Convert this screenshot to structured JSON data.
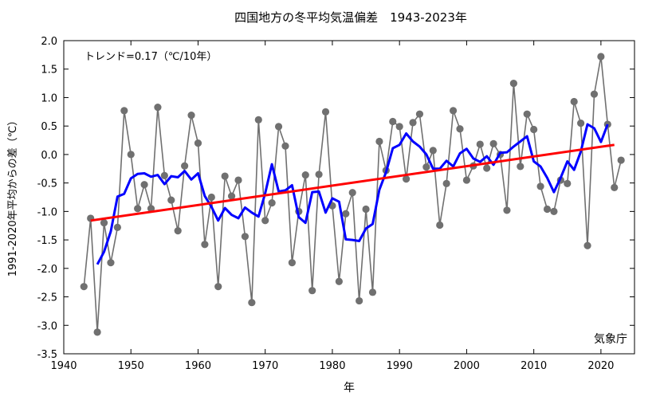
{
  "chart_data": {
    "type": "line",
    "title": "四国地方の冬平均気温偏差　1943-2023年",
    "xlabel": "年",
    "ylabel": "1991-2020年平均からの差（℃）",
    "trend_label": "トレンド=0.17（℃/10年）",
    "credit": "気象庁",
    "xlim": [
      1940,
      2025
    ],
    "ylim": [
      -3.5,
      2.0
    ],
    "x_ticks": [
      1940,
      1950,
      1960,
      1970,
      1980,
      1990,
      2000,
      2010,
      2020
    ],
    "x_tick_labels": [
      "1940",
      "1950",
      "1960",
      "1970",
      "1980",
      "1990",
      "2000",
      "2010",
      "2020"
    ],
    "y_ticks": [
      -3.5,
      -3.0,
      -2.5,
      -2.0,
      -1.5,
      -1.0,
      -0.5,
      0.0,
      0.5,
      1.0,
      1.5,
      2.0
    ],
    "y_tick_labels": [
      "-3.5",
      "-3.0",
      "-2.5",
      "-2.0",
      "-1.5",
      "-1.0",
      "-0.5",
      "0.0",
      "0.5",
      "1.0",
      "1.5",
      "2.0"
    ],
    "grid": false,
    "colors": {
      "annual": "#707070",
      "moving_average": "#0000ff",
      "trend": "#ff0000"
    },
    "series": [
      {
        "x": [
          1943,
          1944,
          1945,
          1946,
          1947,
          1948,
          1949,
          1950,
          1951,
          1952,
          1953,
          1954,
          1955,
          1956,
          1957,
          1958,
          1959,
          1960,
          1961,
          1962,
          1963,
          1964,
          1965,
          1966,
          1967,
          1968,
          1969,
          1970,
          1971,
          1972,
          1973,
          1974,
          1975,
          1976,
          1977,
          1978,
          1979,
          1980,
          1981,
          1982,
          1983,
          1984,
          1985,
          1986,
          1987,
          1988,
          1989,
          1990,
          1991,
          1992,
          1993,
          1994,
          1995,
          1996,
          1997,
          1998,
          1999,
          2000,
          2001,
          2002,
          2003,
          2004,
          2005,
          2006,
          2007,
          2008,
          2009,
          2010,
          2011,
          2012,
          2013,
          2014,
          2015,
          2016,
          2017,
          2018,
          2019,
          2020,
          2021,
          2022,
          2023
        ],
        "values": [
          -2.32,
          -1.12,
          -3.12,
          -1.2,
          -1.9,
          -1.28,
          0.77,
          0.0,
          -0.95,
          -0.53,
          -0.95,
          0.83,
          -0.37,
          -0.8,
          -1.34,
          -0.2,
          0.69,
          0.2,
          -1.58,
          -0.75,
          -2.32,
          -0.38,
          -0.73,
          -0.45,
          -1.44,
          -2.6,
          0.61,
          -1.16,
          -0.85,
          0.49,
          0.15,
          -1.9,
          -1.0,
          -0.36,
          -2.39,
          -0.35,
          0.75,
          -0.9,
          -2.23,
          -1.04,
          -0.67,
          -2.57,
          -0.96,
          -2.42,
          0.23,
          -0.28,
          0.58,
          0.49,
          -0.43,
          0.56,
          0.71,
          -0.22,
          0.07,
          -1.24,
          -0.51,
          0.77,
          0.45,
          -0.45,
          -0.2,
          0.18,
          -0.24,
          0.19,
          0.0,
          -0.98,
          1.25,
          -0.21,
          0.71,
          0.44,
          -0.56,
          -0.96,
          -1.0,
          -0.45,
          -0.51,
          0.93,
          0.55,
          -1.6,
          1.06,
          1.72,
          0.53,
          -0.58,
          -0.1
        ]
      },
      {
        "x": [
          1945,
          1946,
          1947,
          1948,
          1949,
          1950,
          1951,
          1952,
          1953,
          1954,
          1955,
          1956,
          1957,
          1958,
          1959,
          1960,
          1961,
          1962,
          1963,
          1964,
          1965,
          1966,
          1967,
          1968,
          1969,
          1970,
          1971,
          1972,
          1973,
          1974,
          1975,
          1976,
          1977,
          1978,
          1979,
          1980,
          1981,
          1982,
          1983,
          1984,
          1985,
          1986,
          1987,
          1988,
          1989,
          1990,
          1991,
          1992,
          1993,
          1994,
          1995,
          1996,
          1997,
          1998,
          1999,
          2000,
          2001,
          2002,
          2003,
          2004,
          2005,
          2006,
          2007,
          2008,
          2009,
          2010,
          2011,
          2012,
          2013,
          2014,
          2015,
          2016,
          2017,
          2018,
          2019,
          2020,
          2021
        ],
        "values": [
          -1.93,
          -1.71,
          -1.35,
          -0.74,
          -0.69,
          -0.42,
          -0.34,
          -0.33,
          -0.39,
          -0.36,
          -0.52,
          -0.38,
          -0.4,
          -0.29,
          -0.44,
          -0.33,
          -0.73,
          -0.92,
          -1.16,
          -0.94,
          -1.06,
          -1.12,
          -0.93,
          -1.02,
          -1.09,
          -0.68,
          -0.17,
          -0.65,
          -0.63,
          -0.54,
          -1.1,
          -1.2,
          -0.66,
          -0.65,
          -1.02,
          -0.77,
          -0.83,
          -1.49,
          -1.5,
          -1.52,
          -1.3,
          -1.22,
          -0.62,
          -0.31,
          0.11,
          0.17,
          0.37,
          0.23,
          0.14,
          0.0,
          -0.25,
          -0.25,
          -0.11,
          -0.21,
          0.02,
          0.1,
          -0.07,
          -0.13,
          -0.03,
          -0.18,
          0.03,
          0.04,
          0.14,
          0.23,
          0.32,
          -0.12,
          -0.21,
          -0.41,
          -0.66,
          -0.41,
          -0.12,
          -0.27,
          0.05,
          0.53,
          0.46,
          0.22,
          0.53
        ]
      },
      {
        "x": [
          1944,
          2022
        ],
        "values": [
          -1.16,
          0.17
        ]
      }
    ]
  }
}
